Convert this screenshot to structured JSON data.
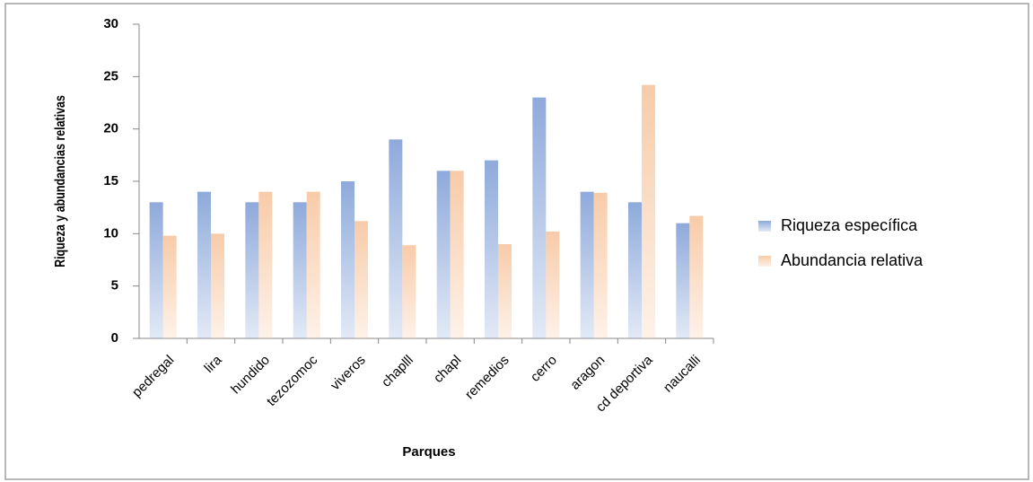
{
  "chart_data": {
    "type": "bar",
    "x_label": "Parques",
    "y_label": "Riqueza y abundancias relativas",
    "categories": [
      "pedregal",
      "lira",
      "hundido",
      "tezozomoc",
      "viveros",
      "chaplll",
      "chapl",
      "remedios",
      "cerro",
      "aragon",
      "cd deportiva",
      "naucalli"
    ],
    "series": [
      {
        "name": "Riqueza específica",
        "color": "#8eaadb",
        "values": [
          13,
          14,
          13,
          13,
          15,
          19,
          16,
          17,
          23,
          14,
          13,
          11
        ]
      },
      {
        "name": "Abundancia relativa",
        "color": "#f8cba8",
        "values": [
          9.8,
          10,
          14,
          14,
          11.2,
          8.9,
          16,
          9,
          10.2,
          13.9,
          24.2,
          11.7
        ]
      }
    ],
    "ylim": [
      0,
      30
    ],
    "yticks": [
      0,
      5,
      10,
      15,
      20,
      25,
      30
    ],
    "legend": "right"
  }
}
